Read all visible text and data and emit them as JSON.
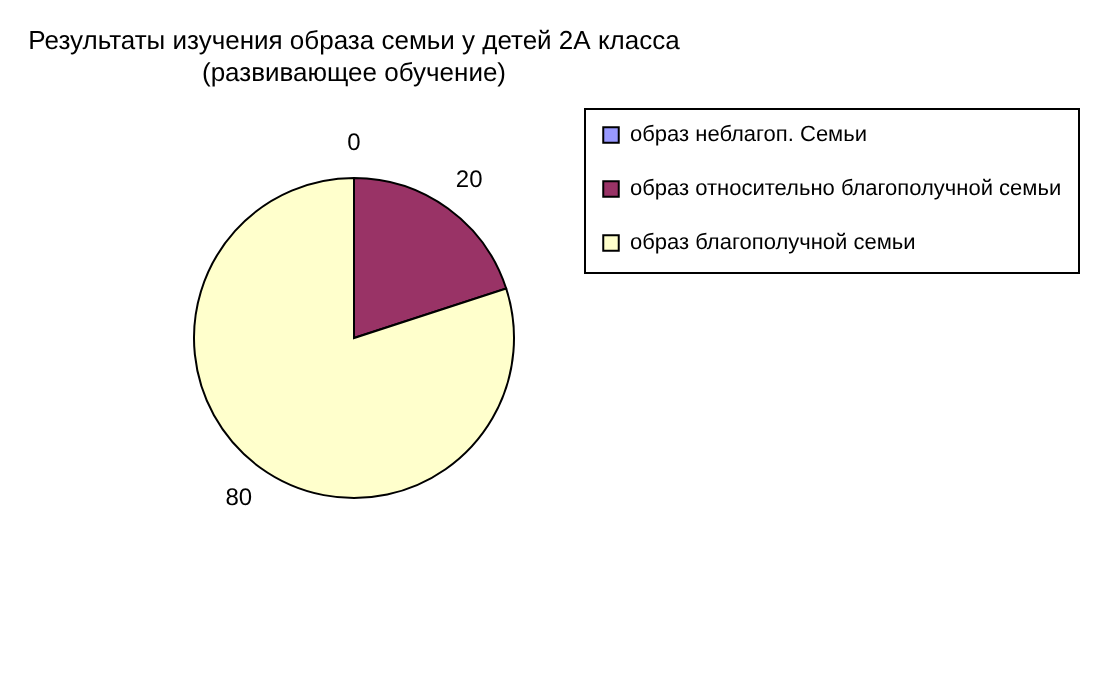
{
  "chart_data": {
    "type": "pie",
    "title": "Результаты изучения образа семьи у детей 2А класса",
    "subtitle": "(развивающее обучение)",
    "categories": [
      "образ неблагоп. Семьи",
      "образ относительно благополучной семьи",
      "образ благополучной семьи"
    ],
    "values": [
      0,
      20,
      80
    ],
    "value_labels": [
      "0",
      "20",
      "80"
    ],
    "colors": [
      "#9999ff",
      "#993366",
      "#ffffcc"
    ],
    "legend": "right"
  }
}
